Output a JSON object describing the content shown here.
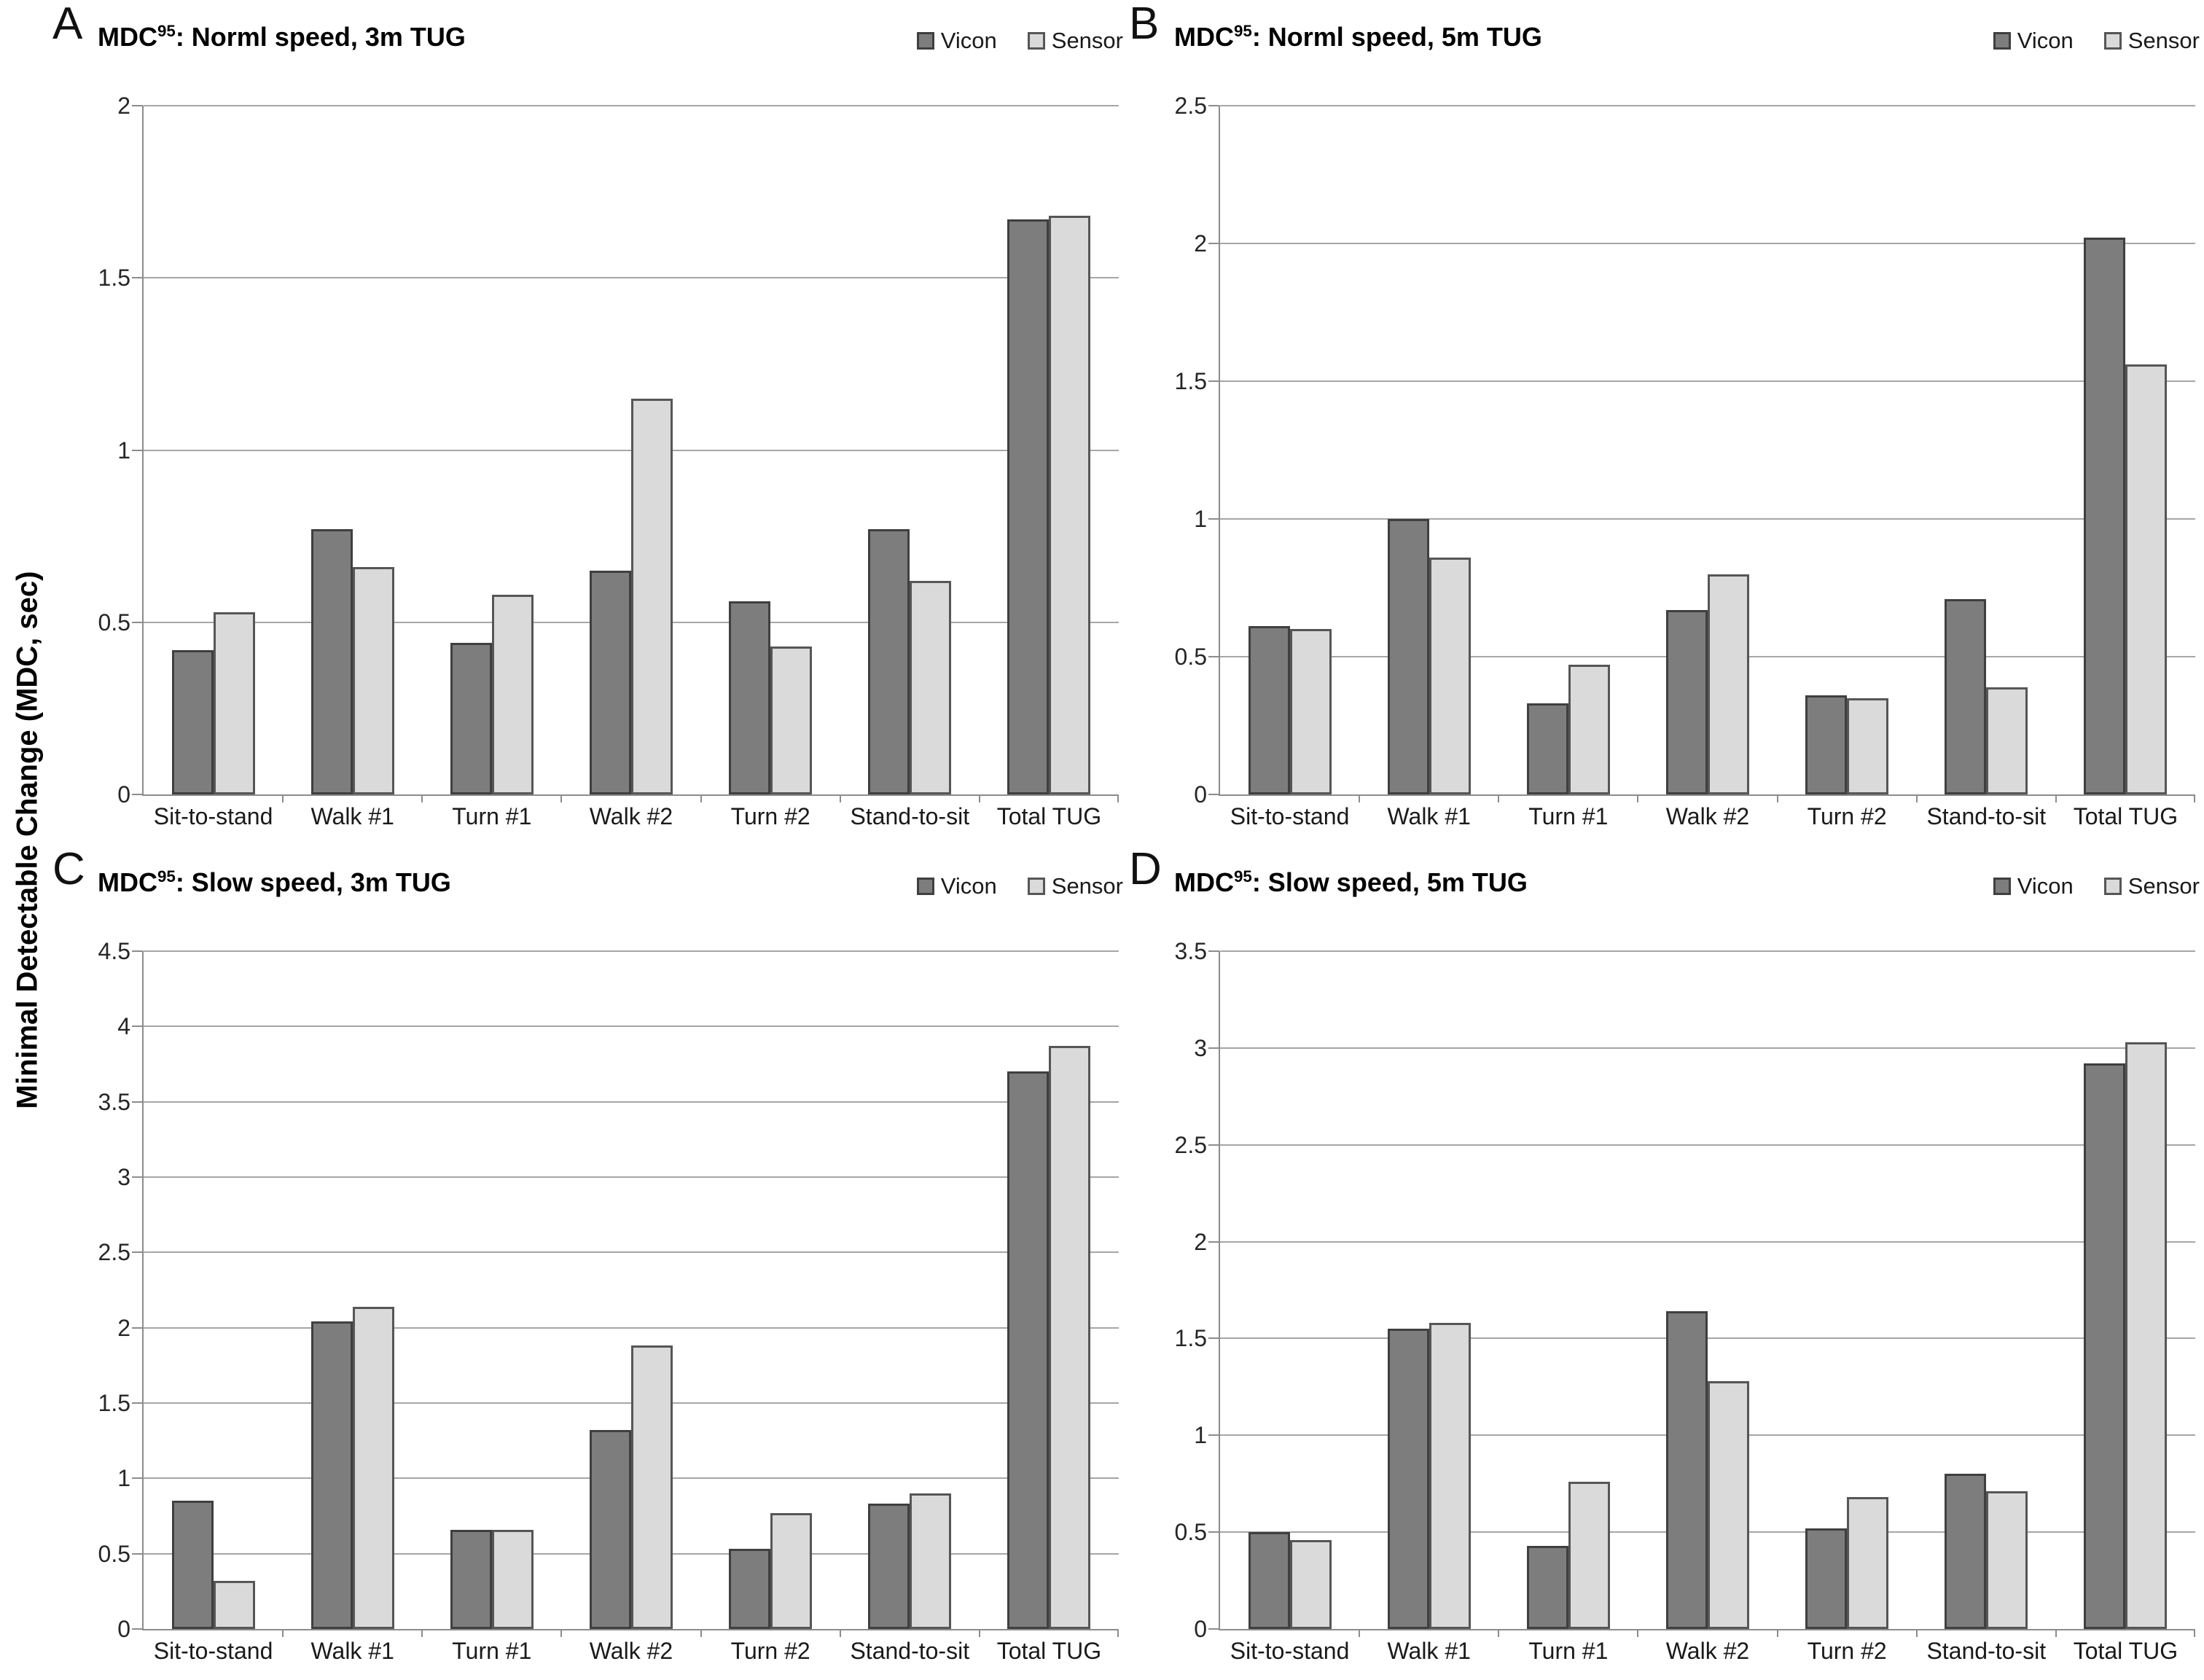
{
  "ylabel": "Minimal Detectable Change (MDC, sec)",
  "colors": {
    "vicon_fill": "#7d7d7d",
    "vicon_border": "#3f3f3f",
    "sensor_fill": "#dadada",
    "sensor_border": "#565656",
    "gridline": "#a6a6a6",
    "axis": "#8c8c8c"
  },
  "categories": [
    "Sit-to-stand",
    "Walk #1",
    "Turn #1",
    "Walk #2",
    "Turn #2",
    "Stand-to-sit",
    "Total TUG"
  ],
  "chart_data": [
    {
      "type": "bar",
      "panel": "A",
      "title": {
        "base": "MDC",
        "sup": "95",
        "rest": ": Norml speed, 3m TUG"
      },
      "ylim": [
        0,
        2
      ],
      "ytick_step": 0.5,
      "grid": true,
      "legend_position": "top-right",
      "categories": [
        "Sit-to-stand",
        "Walk #1",
        "Turn #1",
        "Walk #2",
        "Turn #2",
        "Stand-to-sit",
        "Total TUG"
      ],
      "series": [
        {
          "name": "Vicon",
          "values": [
            0.42,
            0.77,
            0.44,
            0.65,
            0.56,
            0.77,
            1.67
          ]
        },
        {
          "name": "Sensor",
          "values": [
            0.53,
            0.66,
            0.58,
            1.15,
            0.43,
            0.62,
            1.68
          ]
        }
      ]
    },
    {
      "type": "bar",
      "panel": "B",
      "title": {
        "base": "MDC",
        "sup": "95",
        "rest": ": Norml speed, 5m TUG"
      },
      "ylim": [
        0,
        2.5
      ],
      "ytick_step": 0.5,
      "grid": true,
      "legend_position": "top-right",
      "categories": [
        "Sit-to-stand",
        "Walk #1",
        "Turn #1",
        "Walk #2",
        "Turn #2",
        "Stand-to-sit",
        "Total TUG"
      ],
      "series": [
        {
          "name": "Vicon",
          "values": [
            0.61,
            1.0,
            0.33,
            0.67,
            0.36,
            0.71,
            2.02
          ]
        },
        {
          "name": "Sensor",
          "values": [
            0.6,
            0.86,
            0.47,
            0.8,
            0.35,
            0.39,
            1.56
          ]
        }
      ]
    },
    {
      "type": "bar",
      "panel": "C",
      "title": {
        "base": "MDC",
        "sup": "95",
        "rest": ": Slow speed, 3m TUG"
      },
      "ylim": [
        0,
        4.5
      ],
      "ytick_step": 0.5,
      "grid": true,
      "legend_position": "top-right",
      "categories": [
        "Sit-to-stand",
        "Walk #1",
        "Turn #1",
        "Walk #2",
        "Turn #2",
        "Stand-to-sit",
        "Total TUG"
      ],
      "series": [
        {
          "name": "Vicon",
          "values": [
            0.85,
            2.04,
            0.66,
            1.32,
            0.53,
            0.83,
            3.7
          ]
        },
        {
          "name": "Sensor",
          "values": [
            0.32,
            2.14,
            0.66,
            1.88,
            0.77,
            0.9,
            3.87
          ]
        }
      ]
    },
    {
      "type": "bar",
      "panel": "D",
      "title": {
        "base": "MDC",
        "sup": "95",
        "rest": ": Slow speed, 5m TUG"
      },
      "ylim": [
        0,
        3.5
      ],
      "ytick_step": 0.5,
      "grid": true,
      "legend_position": "top-right",
      "categories": [
        "Sit-to-stand",
        "Walk #1",
        "Turn #1",
        "Walk #2",
        "Turn #2",
        "Stand-to-sit",
        "Total TUG"
      ],
      "series": [
        {
          "name": "Vicon",
          "values": [
            0.5,
            1.55,
            0.43,
            1.64,
            0.52,
            0.8,
            2.92
          ]
        },
        {
          "name": "Sensor",
          "values": [
            0.46,
            1.58,
            0.76,
            1.28,
            0.68,
            0.71,
            3.03
          ]
        }
      ]
    }
  ]
}
